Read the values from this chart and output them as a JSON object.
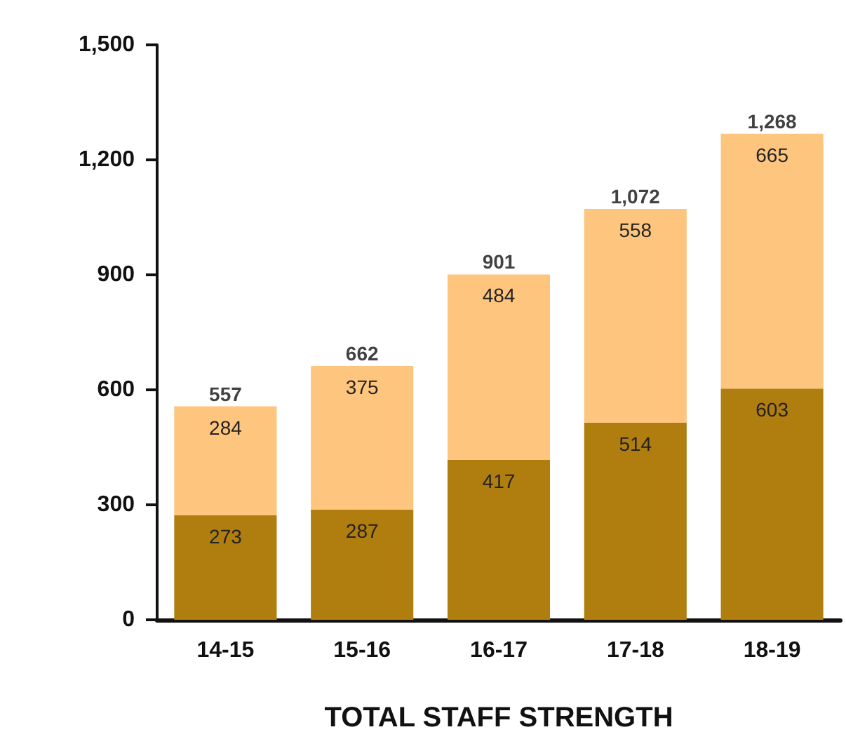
{
  "chart_data": {
    "type": "bar",
    "stacked": true,
    "xlabel": "TOTAL STAFF STRENGTH",
    "categories": [
      "14-15",
      "15-16",
      "16-17",
      "17-18",
      "18-19"
    ],
    "series": [
      {
        "color": "#b07d0f",
        "values": [
          273,
          287,
          417,
          514,
          603
        ]
      },
      {
        "color": "#fdc57e",
        "values": [
          284,
          375,
          484,
          558,
          665
        ]
      }
    ],
    "data_labels": true,
    "totals": [
      "557",
      "662",
      "901",
      "1,072",
      "1,268"
    ],
    "ylim": [
      0,
      1500
    ],
    "yticks": [
      0,
      300,
      600,
      900,
      {
        "value": 1200,
        "label": "1,200"
      },
      {
        "value": 1500,
        "label": "1,500"
      }
    ],
    "grid": false
  }
}
